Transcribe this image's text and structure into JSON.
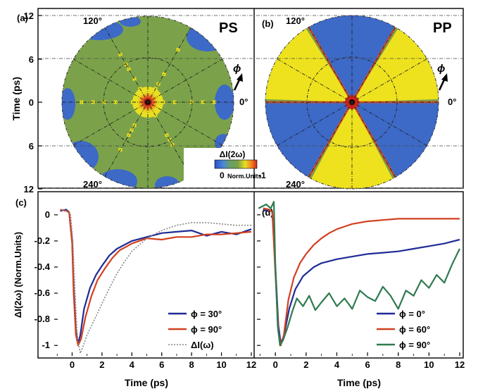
{
  "chart_data": [
    {
      "id": "a",
      "type": "heatmap",
      "panel_label": "(a)",
      "title": "PS",
      "ylabel": "Time (ps)",
      "yticks": [
        "12",
        "6",
        "0",
        "6",
        "12"
      ],
      "angle_labels": [
        "120°",
        "240°"
      ],
      "zero_angle_label": "0°",
      "phi_label": "ϕ",
      "colorbar": {
        "title": "ΔI(2ω)",
        "min_label": "0",
        "units_label": "Norm.Units",
        "max_label": "-1",
        "colors": [
          "#2b4fc8",
          "#4a86d8",
          "#6aa060",
          "#7ca24a",
          "#e8e020",
          "#f08a20",
          "#d42418"
        ]
      },
      "background_color": "#7ca24a",
      "features": {
        "blue_regions": "outer edge patches",
        "yellow_star_rays": 6,
        "hot_center": true
      }
    },
    {
      "id": "b",
      "type": "heatmap",
      "panel_label": "(b)",
      "title": "PP",
      "angle_labels": [
        "120°",
        "240°"
      ],
      "zero_angle_label": "0°",
      "phi_label": "ϕ",
      "sectors": {
        "symmetry": 6,
        "yellow_center_deg": [
          30,
          150,
          270
        ],
        "blue_center_deg": [
          90,
          210,
          330
        ],
        "colors": {
          "yellow": "#eee21e",
          "blue": "#3d69c7",
          "green": "#76a04c"
        }
      }
    },
    {
      "id": "c",
      "type": "line",
      "panel_label": "(c)",
      "xlabel": "Time (ps)",
      "ylabel": "ΔI(2ω) (Norm.Units)",
      "xlim": [
        -1.2,
        12
      ],
      "ylim": [
        -1.08,
        0.08
      ],
      "xticks": [
        0,
        2,
        4,
        6,
        8,
        10,
        12
      ],
      "yticks": [
        0,
        -0.2,
        -0.4,
        -0.6,
        -0.8,
        -1
      ],
      "ytick_labels": [
        "0",
        "-0.2",
        "-0.4",
        "-0.6",
        "-0.8",
        "-1"
      ],
      "legend_position": "lower-right",
      "series": [
        {
          "name": "ϕ = 30°",
          "color": "#1f2b96",
          "dash": "",
          "points": [
            [
              -0.8,
              0.03
            ],
            [
              -0.4,
              0.04
            ],
            [
              -0.2,
              0.02
            ],
            [
              0,
              -0.2
            ],
            [
              0.1,
              -0.55
            ],
            [
              0.25,
              -0.88
            ],
            [
              0.4,
              -0.99
            ],
            [
              0.55,
              -0.92
            ],
            [
              0.8,
              -0.72
            ],
            [
              1.2,
              -0.56
            ],
            [
              1.6,
              -0.46
            ],
            [
              2,
              -0.39
            ],
            [
              2.5,
              -0.31
            ],
            [
              3,
              -0.26
            ],
            [
              3.5,
              -0.23
            ],
            [
              4,
              -0.2
            ],
            [
              5,
              -0.17
            ],
            [
              6,
              -0.14
            ],
            [
              7,
              -0.13
            ],
            [
              8,
              -0.12
            ],
            [
              9,
              -0.16
            ],
            [
              10,
              -0.13
            ],
            [
              11,
              -0.15
            ],
            [
              12,
              -0.11
            ]
          ]
        },
        {
          "name": "ϕ = 90°",
          "color": "#d24020",
          "dash": "",
          "points": [
            [
              -0.8,
              0.04
            ],
            [
              -0.4,
              0.03
            ],
            [
              -0.2,
              0.02
            ],
            [
              0,
              -0.22
            ],
            [
              0.1,
              -0.6
            ],
            [
              0.25,
              -0.92
            ],
            [
              0.4,
              -1.0
            ],
            [
              0.6,
              -0.95
            ],
            [
              0.9,
              -0.78
            ],
            [
              1.3,
              -0.62
            ],
            [
              1.7,
              -0.5
            ],
            [
              2.2,
              -0.41
            ],
            [
              2.7,
              -0.33
            ],
            [
              3.2,
              -0.27
            ],
            [
              3.7,
              -0.24
            ],
            [
              4,
              -0.22
            ],
            [
              5,
              -0.18
            ],
            [
              6,
              -0.19
            ],
            [
              7,
              -0.17
            ],
            [
              8,
              -0.17
            ],
            [
              9,
              -0.15
            ],
            [
              10,
              -0.15
            ],
            [
              11,
              -0.14
            ],
            [
              12,
              -0.13
            ]
          ]
        },
        {
          "name": "ΔI(ω)",
          "color": "#888888",
          "dash": "2,2",
          "points": [
            [
              -0.8,
              0.04
            ],
            [
              -0.4,
              0.03
            ],
            [
              -0.1,
              0.0
            ],
            [
              0.05,
              -0.2
            ],
            [
              0.2,
              -0.6
            ],
            [
              0.35,
              -0.95
            ],
            [
              0.55,
              -1.06
            ],
            [
              0.75,
              -1.0
            ],
            [
              1,
              -0.92
            ],
            [
              1.5,
              -0.8
            ],
            [
              2,
              -0.68
            ],
            [
              2.5,
              -0.56
            ],
            [
              3,
              -0.45
            ],
            [
              3.5,
              -0.36
            ],
            [
              4,
              -0.28
            ],
            [
              5,
              -0.18
            ],
            [
              6,
              -0.12
            ],
            [
              7,
              -0.08
            ],
            [
              8,
              -0.06
            ],
            [
              9,
              -0.06
            ],
            [
              10,
              -0.07
            ],
            [
              11,
              -0.08
            ],
            [
              12,
              -0.08
            ]
          ]
        }
      ]
    },
    {
      "id": "d",
      "type": "line",
      "panel_label": "(d)",
      "xlabel": "Time (ps)",
      "xlim": [
        -1.2,
        12
      ],
      "ylim": [
        -1.08,
        0.08
      ],
      "xticks": [
        0,
        2,
        4,
        6,
        8,
        10,
        12
      ],
      "legend_position": "lower-right",
      "series": [
        {
          "name": "ϕ = 0°",
          "color": "#1f2b96",
          "dash": "",
          "points": [
            [
              -0.8,
              0.03
            ],
            [
              -0.4,
              0.04
            ],
            [
              -0.2,
              0.02
            ],
            [
              0,
              -0.4
            ],
            [
              0.2,
              -0.85
            ],
            [
              0.35,
              -0.98
            ],
            [
              0.55,
              -0.93
            ],
            [
              0.9,
              -0.72
            ],
            [
              1.3,
              -0.57
            ],
            [
              1.8,
              -0.47
            ],
            [
              2.5,
              -0.4
            ],
            [
              3,
              -0.37
            ],
            [
              4,
              -0.34
            ],
            [
              5,
              -0.32
            ],
            [
              6,
              -0.3
            ],
            [
              7,
              -0.29
            ],
            [
              8,
              -0.28
            ],
            [
              9,
              -0.26
            ],
            [
              10,
              -0.24
            ],
            [
              11,
              -0.22
            ],
            [
              12,
              -0.19
            ]
          ]
        },
        {
          "name": "ϕ = 60°",
          "color": "#d24020",
          "dash": "",
          "points": [
            [
              -0.8,
              0.05
            ],
            [
              -0.4,
              0.04
            ],
            [
              -0.2,
              0.02
            ],
            [
              0,
              -0.45
            ],
            [
              0.2,
              -0.9
            ],
            [
              0.35,
              -1.0
            ],
            [
              0.55,
              -0.92
            ],
            [
              0.85,
              -0.65
            ],
            [
              1.2,
              -0.48
            ],
            [
              1.6,
              -0.37
            ],
            [
              2,
              -0.3
            ],
            [
              2.5,
              -0.23
            ],
            [
              3,
              -0.18
            ],
            [
              3.5,
              -0.14
            ],
            [
              4,
              -0.11
            ],
            [
              4.5,
              -0.09
            ],
            [
              5,
              -0.07
            ],
            [
              6,
              -0.05
            ],
            [
              7,
              -0.04
            ],
            [
              8,
              -0.03
            ],
            [
              9,
              -0.03
            ],
            [
              10,
              -0.03
            ],
            [
              11,
              -0.03
            ],
            [
              12,
              -0.03
            ]
          ]
        },
        {
          "name": "ϕ = 90°",
          "color": "#2f7a50",
          "dash": "",
          "points": [
            [
              -1.1,
              0.05
            ],
            [
              -0.6,
              0.08
            ],
            [
              -0.3,
              0.05
            ],
            [
              -0.1,
              0.1
            ],
            [
              0,
              -0.4
            ],
            [
              0.15,
              -0.85
            ],
            [
              0.3,
              -1.0
            ],
            [
              0.5,
              -0.96
            ],
            [
              0.8,
              -0.86
            ],
            [
              1.1,
              -0.74
            ],
            [
              1.4,
              -0.64
            ],
            [
              1.8,
              -0.7
            ],
            [
              2.2,
              -0.62
            ],
            [
              2.6,
              -0.73
            ],
            [
              3,
              -0.67
            ],
            [
              3.5,
              -0.6
            ],
            [
              4,
              -0.7
            ],
            [
              4.5,
              -0.64
            ],
            [
              5,
              -0.72
            ],
            [
              5.5,
              -0.58
            ],
            [
              6,
              -0.63
            ],
            [
              6.5,
              -0.66
            ],
            [
              7,
              -0.55
            ],
            [
              7.5,
              -0.62
            ],
            [
              8,
              -0.72
            ],
            [
              8.5,
              -0.58
            ],
            [
              9,
              -0.62
            ],
            [
              9.5,
              -0.5
            ],
            [
              10,
              -0.56
            ],
            [
              10.5,
              -0.46
            ],
            [
              11,
              -0.52
            ],
            [
              11.5,
              -0.38
            ],
            [
              12,
              -0.26
            ]
          ]
        }
      ]
    }
  ]
}
